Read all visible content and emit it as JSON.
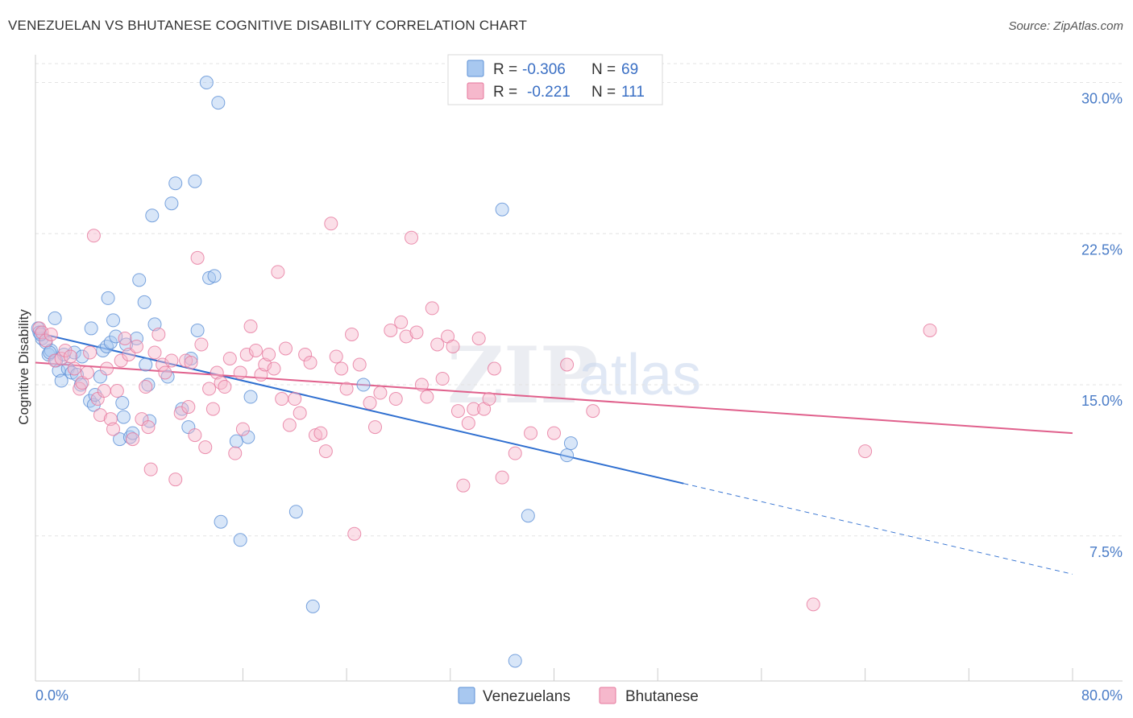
{
  "title": "VENEZUELAN VS BHUTANESE COGNITIVE DISABILITY CORRELATION CHART",
  "source": "Source: ZipAtlas.com",
  "watermark": {
    "zip": "ZIP",
    "atlas": "atlas"
  },
  "chart_data": {
    "type": "scatter",
    "ylabel": "Cognitive Disability",
    "xlim": [
      0,
      80
    ],
    "ylim": [
      0.3,
      31.3
    ],
    "x_tick_labels": [
      "0.0%",
      "80.0%"
    ],
    "y_ticks": [
      7.5,
      15.0,
      22.5,
      30.0
    ],
    "y_tick_labels": [
      "7.5%",
      "15.0%",
      "22.5%",
      "30.0%"
    ],
    "legend": [
      {
        "name": "Venezuelans",
        "r_label": "R = ",
        "r": "-0.306",
        "n_label": "N = ",
        "n": "69",
        "color": "#a8c8f0",
        "stroke": "#5b8fd6"
      },
      {
        "name": "Bhutanese",
        "r_label": "R = ",
        "r": "-0.221",
        "n_label": "N = ",
        "n": "111",
        "color": "#f6b8cc",
        "stroke": "#e6779c"
      }
    ],
    "series": [
      {
        "name": "Venezuelans",
        "color": "#a8c8f0",
        "stroke": "#5b8fd6",
        "trend": {
          "x0": 0,
          "y0": 17.6,
          "x1": 50,
          "y1": 10.1,
          "dash_to_x": 80,
          "dash_to_y": 5.6,
          "color": "#2f6fd0"
        },
        "points": [
          [
            0.2,
            17.8
          ],
          [
            0.5,
            17.3
          ],
          [
            0.8,
            17.1
          ],
          [
            1.0,
            16.5
          ],
          [
            1.2,
            16.7
          ],
          [
            1.5,
            18.3
          ],
          [
            1.6,
            16.2
          ],
          [
            1.8,
            15.7
          ],
          [
            2.0,
            15.2
          ],
          [
            2.2,
            16.5
          ],
          [
            2.5,
            15.8
          ],
          [
            2.8,
            15.6
          ],
          [
            3.0,
            16.6
          ],
          [
            3.2,
            15.5
          ],
          [
            3.5,
            15.0
          ],
          [
            3.6,
            16.4
          ],
          [
            4.2,
            14.2
          ],
          [
            4.3,
            17.8
          ],
          [
            4.5,
            14.0
          ],
          [
            4.6,
            14.5
          ],
          [
            5.0,
            15.4
          ],
          [
            5.2,
            16.7
          ],
          [
            5.5,
            16.9
          ],
          [
            5.6,
            19.3
          ],
          [
            5.8,
            17.1
          ],
          [
            6.0,
            18.2
          ],
          [
            6.2,
            17.4
          ],
          [
            6.5,
            12.3
          ],
          [
            6.7,
            14.1
          ],
          [
            6.8,
            13.4
          ],
          [
            7.0,
            17.0
          ],
          [
            7.3,
            12.4
          ],
          [
            7.5,
            12.6
          ],
          [
            7.8,
            17.3
          ],
          [
            8.0,
            20.2
          ],
          [
            8.4,
            19.1
          ],
          [
            8.5,
            16.0
          ],
          [
            8.7,
            15.0
          ],
          [
            8.8,
            13.2
          ],
          [
            9.0,
            23.4
          ],
          [
            9.2,
            18.0
          ],
          [
            10.2,
            15.4
          ],
          [
            10.5,
            24.0
          ],
          [
            10.8,
            25.0
          ],
          [
            11.3,
            13.8
          ],
          [
            11.8,
            12.9
          ],
          [
            12.0,
            16.3
          ],
          [
            12.3,
            25.1
          ],
          [
            12.5,
            17.7
          ],
          [
            13.2,
            30.0
          ],
          [
            13.4,
            20.3
          ],
          [
            13.8,
            20.4
          ],
          [
            14.1,
            29.0
          ],
          [
            14.3,
            8.2
          ],
          [
            15.5,
            12.2
          ],
          [
            15.8,
            7.3
          ],
          [
            16.4,
            12.4
          ],
          [
            16.6,
            14.4
          ],
          [
            20.1,
            8.7
          ],
          [
            21.4,
            4.0
          ],
          [
            25.3,
            15.0
          ],
          [
            36.0,
            23.7
          ],
          [
            37.0,
            1.3
          ],
          [
            38.0,
            8.5
          ],
          [
            41.0,
            11.5
          ],
          [
            41.3,
            12.1
          ],
          [
            0.3,
            17.6
          ],
          [
            0.4,
            17.5
          ],
          [
            1.1,
            16.6
          ]
        ]
      },
      {
        "name": "Bhutanese",
        "color": "#f6b8cc",
        "stroke": "#e6779c",
        "trend": {
          "x0": 0,
          "y0": 16.1,
          "x1": 80,
          "y1": 12.6,
          "color": "#e0608c"
        },
        "points": [
          [
            0.3,
            17.8
          ],
          [
            0.5,
            17.6
          ],
          [
            0.8,
            17.2
          ],
          [
            1.2,
            17.5
          ],
          [
            1.5,
            16.2
          ],
          [
            2.0,
            16.3
          ],
          [
            2.3,
            16.7
          ],
          [
            2.7,
            16.4
          ],
          [
            3.0,
            15.8
          ],
          [
            3.4,
            14.8
          ],
          [
            3.6,
            15.1
          ],
          [
            4.0,
            15.6
          ],
          [
            4.2,
            16.6
          ],
          [
            4.5,
            22.4
          ],
          [
            4.8,
            14.3
          ],
          [
            5.0,
            13.5
          ],
          [
            5.3,
            14.7
          ],
          [
            5.5,
            15.8
          ],
          [
            5.8,
            13.3
          ],
          [
            6.0,
            12.8
          ],
          [
            6.3,
            14.7
          ],
          [
            6.6,
            16.2
          ],
          [
            6.9,
            17.3
          ],
          [
            7.2,
            16.5
          ],
          [
            7.5,
            12.3
          ],
          [
            7.8,
            16.9
          ],
          [
            8.2,
            13.3
          ],
          [
            8.5,
            14.9
          ],
          [
            8.7,
            12.9
          ],
          [
            8.9,
            10.8
          ],
          [
            9.2,
            16.6
          ],
          [
            9.5,
            17.5
          ],
          [
            9.8,
            16.0
          ],
          [
            10.0,
            15.6
          ],
          [
            10.5,
            16.2
          ],
          [
            10.8,
            10.3
          ],
          [
            11.2,
            13.6
          ],
          [
            11.6,
            16.2
          ],
          [
            11.8,
            13.9
          ],
          [
            12.0,
            16.1
          ],
          [
            12.3,
            12.5
          ],
          [
            12.5,
            21.3
          ],
          [
            12.8,
            17.0
          ],
          [
            13.1,
            11.9
          ],
          [
            13.4,
            14.8
          ],
          [
            13.7,
            13.8
          ],
          [
            14.0,
            15.6
          ],
          [
            14.3,
            15.1
          ],
          [
            14.6,
            14.9
          ],
          [
            15.0,
            16.3
          ],
          [
            15.4,
            11.6
          ],
          [
            15.8,
            15.6
          ],
          [
            16.0,
            12.8
          ],
          [
            16.3,
            16.5
          ],
          [
            16.6,
            17.9
          ],
          [
            17.0,
            16.7
          ],
          [
            17.4,
            15.5
          ],
          [
            17.7,
            16.0
          ],
          [
            18.0,
            16.5
          ],
          [
            18.4,
            15.8
          ],
          [
            18.7,
            20.6
          ],
          [
            19.0,
            14.3
          ],
          [
            19.3,
            16.8
          ],
          [
            19.6,
            13.0
          ],
          [
            20.0,
            14.3
          ],
          [
            20.4,
            13.6
          ],
          [
            20.8,
            16.5
          ],
          [
            21.2,
            16.1
          ],
          [
            21.6,
            12.5
          ],
          [
            22.0,
            12.6
          ],
          [
            22.4,
            11.7
          ],
          [
            22.8,
            23.0
          ],
          [
            23.2,
            16.4
          ],
          [
            23.6,
            15.8
          ],
          [
            24.0,
            14.8
          ],
          [
            24.4,
            17.5
          ],
          [
            24.6,
            7.6
          ],
          [
            25.0,
            16.0
          ],
          [
            25.8,
            14.1
          ],
          [
            26.2,
            12.9
          ],
          [
            26.6,
            14.6
          ],
          [
            27.4,
            17.7
          ],
          [
            27.8,
            14.3
          ],
          [
            28.2,
            18.1
          ],
          [
            28.6,
            17.4
          ],
          [
            29.0,
            22.3
          ],
          [
            29.4,
            17.6
          ],
          [
            29.8,
            15.0
          ],
          [
            30.2,
            14.4
          ],
          [
            30.6,
            18.8
          ],
          [
            31.0,
            17.0
          ],
          [
            31.4,
            15.3
          ],
          [
            31.8,
            17.4
          ],
          [
            32.2,
            16.9
          ],
          [
            32.6,
            13.7
          ],
          [
            33.0,
            10.0
          ],
          [
            33.4,
            13.1
          ],
          [
            33.8,
            13.8
          ],
          [
            34.2,
            17.3
          ],
          [
            34.6,
            13.8
          ],
          [
            35.0,
            14.3
          ],
          [
            35.4,
            15.8
          ],
          [
            36.0,
            10.4
          ],
          [
            37.0,
            11.6
          ],
          [
            38.2,
            12.6
          ],
          [
            40.0,
            12.6
          ],
          [
            41.0,
            16.0
          ],
          [
            43.0,
            13.7
          ],
          [
            64.0,
            11.7
          ],
          [
            69.0,
            17.7
          ],
          [
            60.0,
            4.1
          ]
        ]
      }
    ]
  }
}
